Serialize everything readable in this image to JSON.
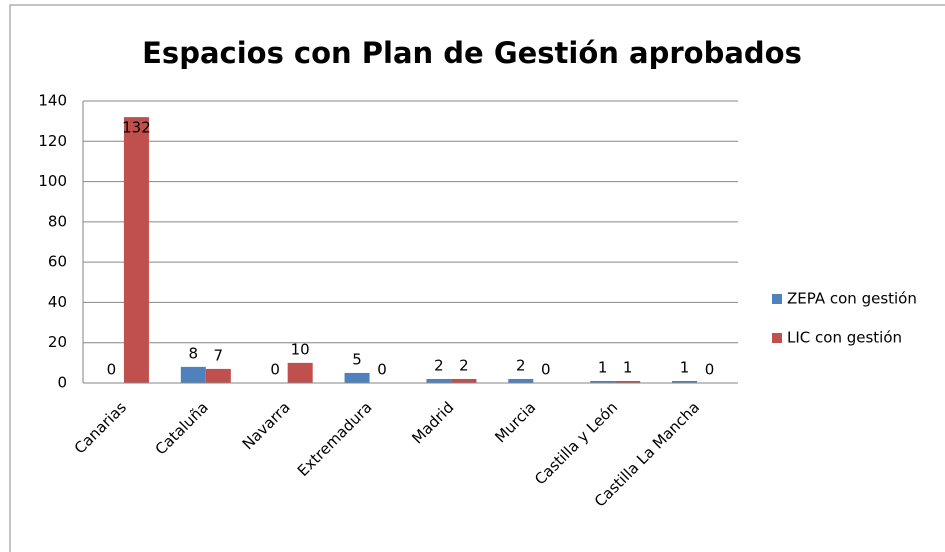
{
  "chart_data": {
    "type": "bar",
    "title": "Espacios con Plan de Gestión aprobados",
    "categories": [
      "Canarias",
      "Cataluña",
      "Navarra",
      "Extremadura",
      "Madrid",
      "Murcia",
      "Castilla y León",
      "Castilla La Mancha"
    ],
    "series": [
      {
        "name": "ZEPA con gestión",
        "color": "#4f81bd",
        "values": [
          0,
          8,
          0,
          5,
          2,
          2,
          1,
          1
        ]
      },
      {
        "name": "LIC con gestión",
        "color": "#c0504d",
        "values": [
          132,
          7,
          10,
          0,
          2,
          0,
          1,
          0
        ]
      }
    ],
    "ylim": [
      0,
      140
    ],
    "yticks": [
      0,
      20,
      40,
      60,
      80,
      100,
      120,
      140
    ],
    "grid": true,
    "legend": "right"
  }
}
